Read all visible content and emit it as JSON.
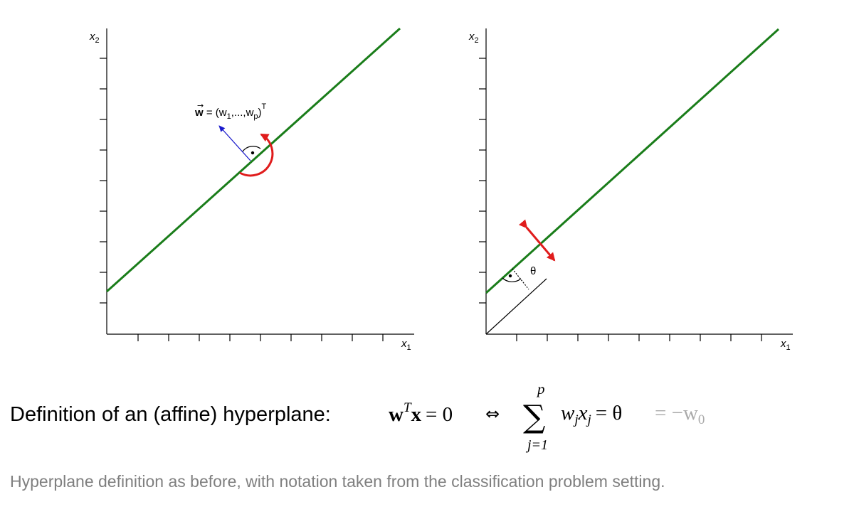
{
  "colors": {
    "hyperplane": "#1a7d1a",
    "normal_vector": "#1a1acc",
    "rotation_arrow": "#e01c1c",
    "axis": "#000000",
    "caption": "#7f7f7f",
    "formula_faded": "#aaaaaa"
  },
  "left_panel": {
    "x_label": "x",
    "x_sub": "1",
    "y_label": "x",
    "y_sub": "2",
    "w_vec": "w",
    "w_def": " = (w",
    "w_sub1": "1",
    "w_mid": ",...,w",
    "w_subp": "p",
    "w_close": ")",
    "w_sup": "T"
  },
  "right_panel": {
    "x_label": "x",
    "x_sub": "1",
    "y_label": "x",
    "y_sub": "2",
    "theta": "θ"
  },
  "formula": {
    "lead": "Definition of an (affine) hyperplane:",
    "w": "w",
    "sup_T": "T",
    "x": "x",
    "eq_zero": "= 0",
    "iff": "⇔",
    "sum": "∑",
    "sum_top": "p",
    "sum_bottom": "j=1",
    "w_j": "w",
    "sub_j1": "j",
    "x_j": "x",
    "sub_j2": "j",
    "eq_theta": "= θ",
    "faded_eq": "= −w",
    "faded_sub": "0"
  },
  "caption": "Hyperplane definition as before, with notation taken from the classification problem setting."
}
